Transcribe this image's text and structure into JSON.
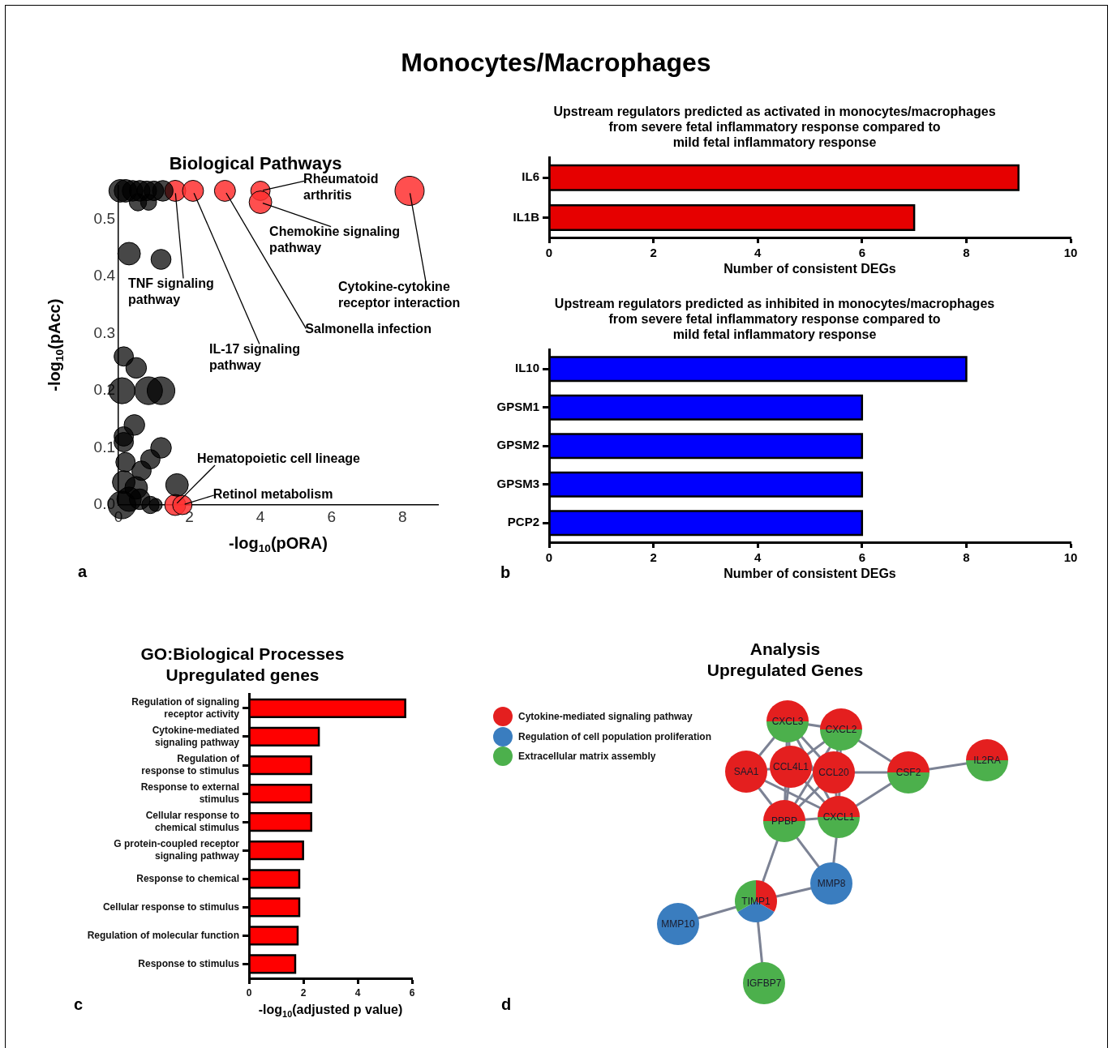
{
  "chart_data": [
    {
      "type": "other",
      "title": "Monocytes/Macrophages"
    },
    {
      "type": "bubble",
      "title": "Biological Pathways",
      "xlabel": "-log$_{10}$(pORA)",
      "ylabel": "-log$_{10}$(pAcc)",
      "xlim": [
        0,
        9
      ],
      "xticks": [
        0,
        2,
        4,
        6,
        8
      ],
      "ylim": [
        0,
        0.56
      ],
      "yticks": [
        {
          "value": 0,
          "label": "0.0"
        },
        {
          "value": 0.1,
          "label": "0.1"
        },
        {
          "value": 0.2,
          "label": "0.2"
        },
        {
          "value": 0.3,
          "label": "0.3"
        },
        {
          "value": 0.4,
          "label": "0.4"
        },
        {
          "value": 0.5,
          "label": "0.5"
        }
      ],
      "series": [
        {
          "color": "#000000",
          "x": [
            0.05,
            0.2,
            0.4,
            0.6,
            0.8,
            1.0,
            1.25,
            0.55,
            0.85,
            0.3,
            1.2,
            0.15,
            0.5,
            0.1,
            0.85,
            1.2,
            0.45,
            0.15,
            0.15,
            1.2,
            0.9,
            0.65,
            0.2,
            1.65,
            0.15,
            0.5,
            0.1,
            0.3,
            0.6,
            0.9,
            1.05
          ],
          "values": [
            0.55,
            0.55,
            0.55,
            0.55,
            0.55,
            0.55,
            0.55,
            0.53,
            0.53,
            0.44,
            0.43,
            0.26,
            0.24,
            0.2,
            0.2,
            0.2,
            0.14,
            0.12,
            0.11,
            0.1,
            0.08,
            0.06,
            0.075,
            0.035,
            0.04,
            0.03,
            0,
            0.01,
            0.01,
            0,
            0
          ],
          "sizes": [
            0.6,
            0.6,
            0.5,
            0.5,
            0.45,
            0.45,
            0.5,
            0.35,
            0.3,
            0.6,
            0.47,
            0.44,
            0.5,
            0.8,
            0.9,
            0.9,
            0.5,
            0.44,
            0.44,
            0.5,
            0.44,
            0.44,
            0.44,
            0.6,
            0.6,
            0.6,
            0.9,
            0.7,
            0.5,
            0.35,
            0.2
          ]
        },
        {
          "color": "#ff3030",
          "x": [
            1.6,
            2.1,
            3.0,
            4.0,
            4.0,
            8.2,
            1.6,
            1.8
          ],
          "values": [
            0.55,
            0.55,
            0.55,
            0.55,
            0.53,
            0.55,
            0,
            0
          ],
          "sizes": [
            0.52,
            0.52,
            0.52,
            0.44,
            0.6,
            1,
            0.52,
            0.44
          ]
        }
      ],
      "annotations": [
        {
          "text": "TNF signaling\npathway",
          "x": 1.6,
          "y": 0.55
        },
        {
          "text": "IL-17 signaling\npathway",
          "x": 2.1,
          "y": 0.55
        },
        {
          "text": "Salmonella infection",
          "x": 3.0,
          "y": 0.55
        },
        {
          "text": "Rheumatoid\narthritis",
          "x": 4.0,
          "y": 0.55
        },
        {
          "text": "Chemokine signaling\npathway",
          "x": 4.0,
          "y": 0.53
        },
        {
          "text": "Cytokine-cytokine\nreceptor interaction",
          "x": 8.2,
          "y": 0.55
        },
        {
          "text": "Hematopoietic cell lineage",
          "x": 1.6,
          "y": 0
        },
        {
          "text": "Retinol metabolism",
          "x": 1.8,
          "y": 0
        },
        "a"
      ]
    },
    {
      "type": "bar",
      "orientation": "horizontal",
      "title": "Upstream regulators predicted as activated in monocytes/macrophages\nfrom severe fetal inflammatory response compared to\nmild fetal inflammatory response",
      "xlabel": "Number of consistent DEGs",
      "categories": [
        "IL6",
        "IL1B"
      ],
      "values": [
        9,
        7
      ],
      "color": "#e60000",
      "xlim": [
        0,
        10
      ],
      "xticks": [
        0,
        2,
        4,
        6,
        8,
        10
      ]
    },
    {
      "type": "bar",
      "orientation": "horizontal",
      "title": "Upstream regulators predicted as inhibited in monocytes/macrophages\nfrom severe fetal inflammatory response compared to\nmild fetal inflammatory response",
      "xlabel": "Number of consistent DEGs",
      "categories": [
        "IL10",
        "GPSM1",
        "GPSM2",
        "GPSM3",
        "PCP2"
      ],
      "values": [
        8,
        6,
        6,
        6,
        6
      ],
      "color": "#0000ff",
      "xlim": [
        0,
        10
      ],
      "xticks": [
        0,
        2,
        4,
        6,
        8,
        10
      ],
      "annotations": [
        "b"
      ]
    },
    {
      "type": "bar",
      "orientation": "horizontal",
      "title": "GO:Biological Processes\nUpregulated genes",
      "xlabel": "-log$_{10}$(adjusted p value)",
      "categories": [
        "Regulation of signaling\nreceptor activity",
        "Cytokine-mediated\nsignaling pathway",
        "Regulation of\nresponse to stimulus",
        "Response to external\nstimulus",
        "Cellular response to\nchemical stimulus",
        "G protein-coupled receptor\nsignaling pathway",
        "Response to chemical",
        "Cellular response to stimulus",
        "Regulation of molecular function",
        "Response to stimulus"
      ],
      "values": [
        5.75,
        2.57,
        2.29,
        2.29,
        2.29,
        1.99,
        1.85,
        1.85,
        1.79,
        1.7
      ],
      "color": "#ff0000",
      "xlim": [
        0,
        6
      ],
      "xticks": [
        0,
        2,
        4,
        6
      ],
      "annotations": [
        "c"
      ]
    },
    {
      "type": "other",
      "title": "Analysis\nUpregulated Genes",
      "colors": [
        "#e41f1f",
        "#3a7dbf",
        "#4cb04c"
      ],
      "categories": [
        "CXCL3",
        "CXCL2",
        "SAA1",
        "CCL4L1",
        "CCL20",
        "CSF2",
        "IL2RA",
        "PPBP",
        "CXCL1",
        "MMP8",
        "TIMP1",
        "MMP10",
        "IGFBP7"
      ],
      "annotations": [
        "Cytokine-mediated signaling pathway",
        "Regulation of cell population proliferation",
        "Extracellular matrix assembly",
        "d"
      ]
    }
  ]
}
